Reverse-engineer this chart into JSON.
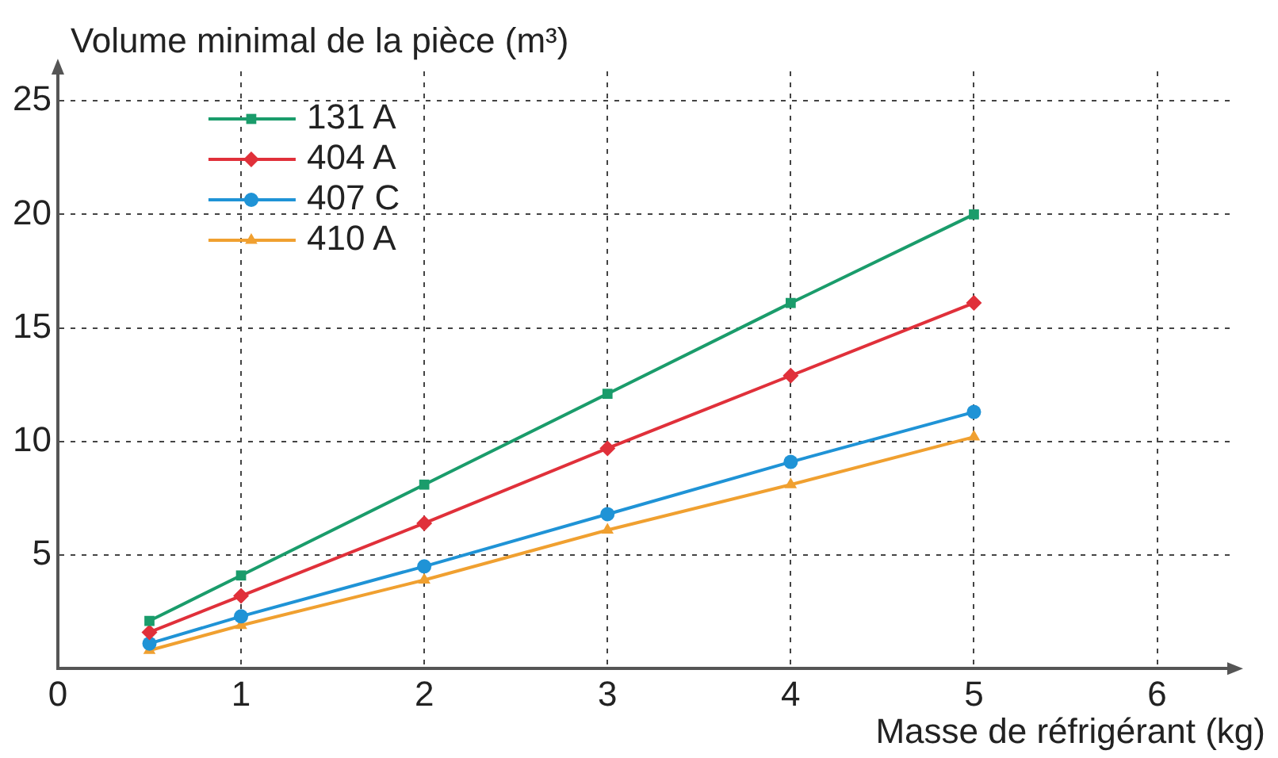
{
  "chart_data": {
    "type": "line",
    "xlabel": "Masse de réfrigérant (kg)",
    "ylabel": "Volume minimal de la pièce (m³)",
    "x": [
      0.5,
      1,
      2,
      3,
      4,
      5
    ],
    "series": [
      {
        "name": "131 A",
        "color": "#1a9c6b",
        "marker": "square",
        "values": [
          2.1,
          4.1,
          8.1,
          12.1,
          16.1,
          20.0
        ]
      },
      {
        "name": "404 A",
        "color": "#e0303a",
        "marker": "diamond",
        "values": [
          1.6,
          3.2,
          6.4,
          9.7,
          12.9,
          16.1
        ]
      },
      {
        "name": "407 C",
        "color": "#1f93d6",
        "marker": "circle",
        "values": [
          1.1,
          2.3,
          4.5,
          6.8,
          9.1,
          11.3
        ]
      },
      {
        "name": "410 A",
        "color": "#f0a030",
        "marker": "triangle",
        "values": [
          0.8,
          1.9,
          3.9,
          6.1,
          8.1,
          10.2
        ]
      }
    ],
    "xlim": [
      0,
      6.4
    ],
    "ylim": [
      0,
      26.3
    ],
    "xticks": [
      0,
      1,
      2,
      3,
      4,
      5,
      6
    ],
    "yticks": [
      {
        "value": 0,
        "label": null
      },
      5,
      10,
      15,
      20,
      25
    ],
    "grid": true,
    "legend": "top left",
    "line_style": "solid"
  }
}
